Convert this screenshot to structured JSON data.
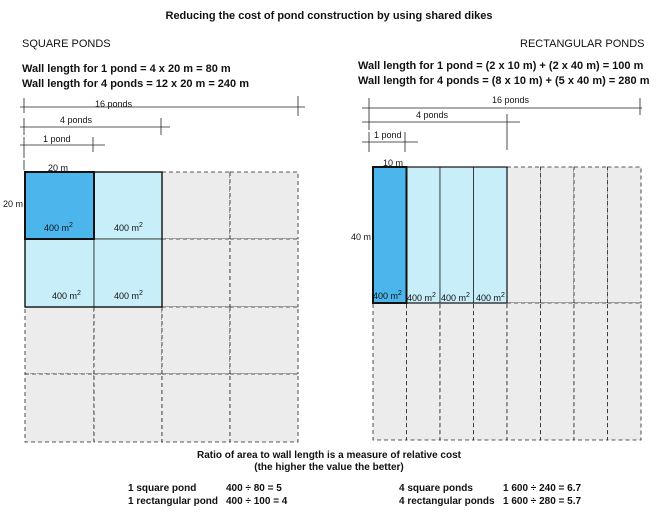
{
  "title": "Reducing the cost of pond construction by using shared dikes",
  "square": {
    "heading": "SQUARE PONDS",
    "wall_1": "Wall length for 1 pond    = 4 x 20 m  =  80 m",
    "wall_4": "Wall length for 4 ponds  = 12 x 20 m = 240 m",
    "dim_16": "16 ponds",
    "dim_4": "4 ponds",
    "dim_1": "1 pond",
    "side_top": "20 m",
    "side_left": "20 m",
    "area_value": "400 m",
    "area_exp": "2"
  },
  "rect": {
    "heading": "RECTANGULAR PONDS",
    "wall_1": "Wall length for 1 pond   = (2 x 10 m) + (2 x 40 m) = 100 m",
    "wall_4": "Wall length for 4 ponds = (8 x 10 m) + (5 x 40 m) = 280 m",
    "dim_16": "16 ponds",
    "dim_4": "4 ponds",
    "dim_1": "1 pond",
    "side_top": "10 m",
    "side_left": "40 m",
    "area_value": "400 m",
    "area_exp": "2"
  },
  "colors": {
    "dark_pond": "#4cb6ec",
    "light_pond": "#c8eefa",
    "empty_pond": "#ececec",
    "line": "#222222"
  },
  "footer": {
    "line1": "Ratio of area to wall length is a measure of relative cost",
    "line2": "(the  higher the value the better)",
    "sq_label": "1 square pond",
    "sq_calc": "400 ÷  80 = 5",
    "rect_label": "1 rectangular pond",
    "rect_calc": "400 ÷ 100 = 4",
    "sq4_label": "4 square ponds",
    "sq4_calc": "1 600 ÷ 240 = 6.7",
    "rect4_label": "4 rectangular ponds",
    "rect4_calc": "1 600 ÷ 280 = 5.7"
  }
}
